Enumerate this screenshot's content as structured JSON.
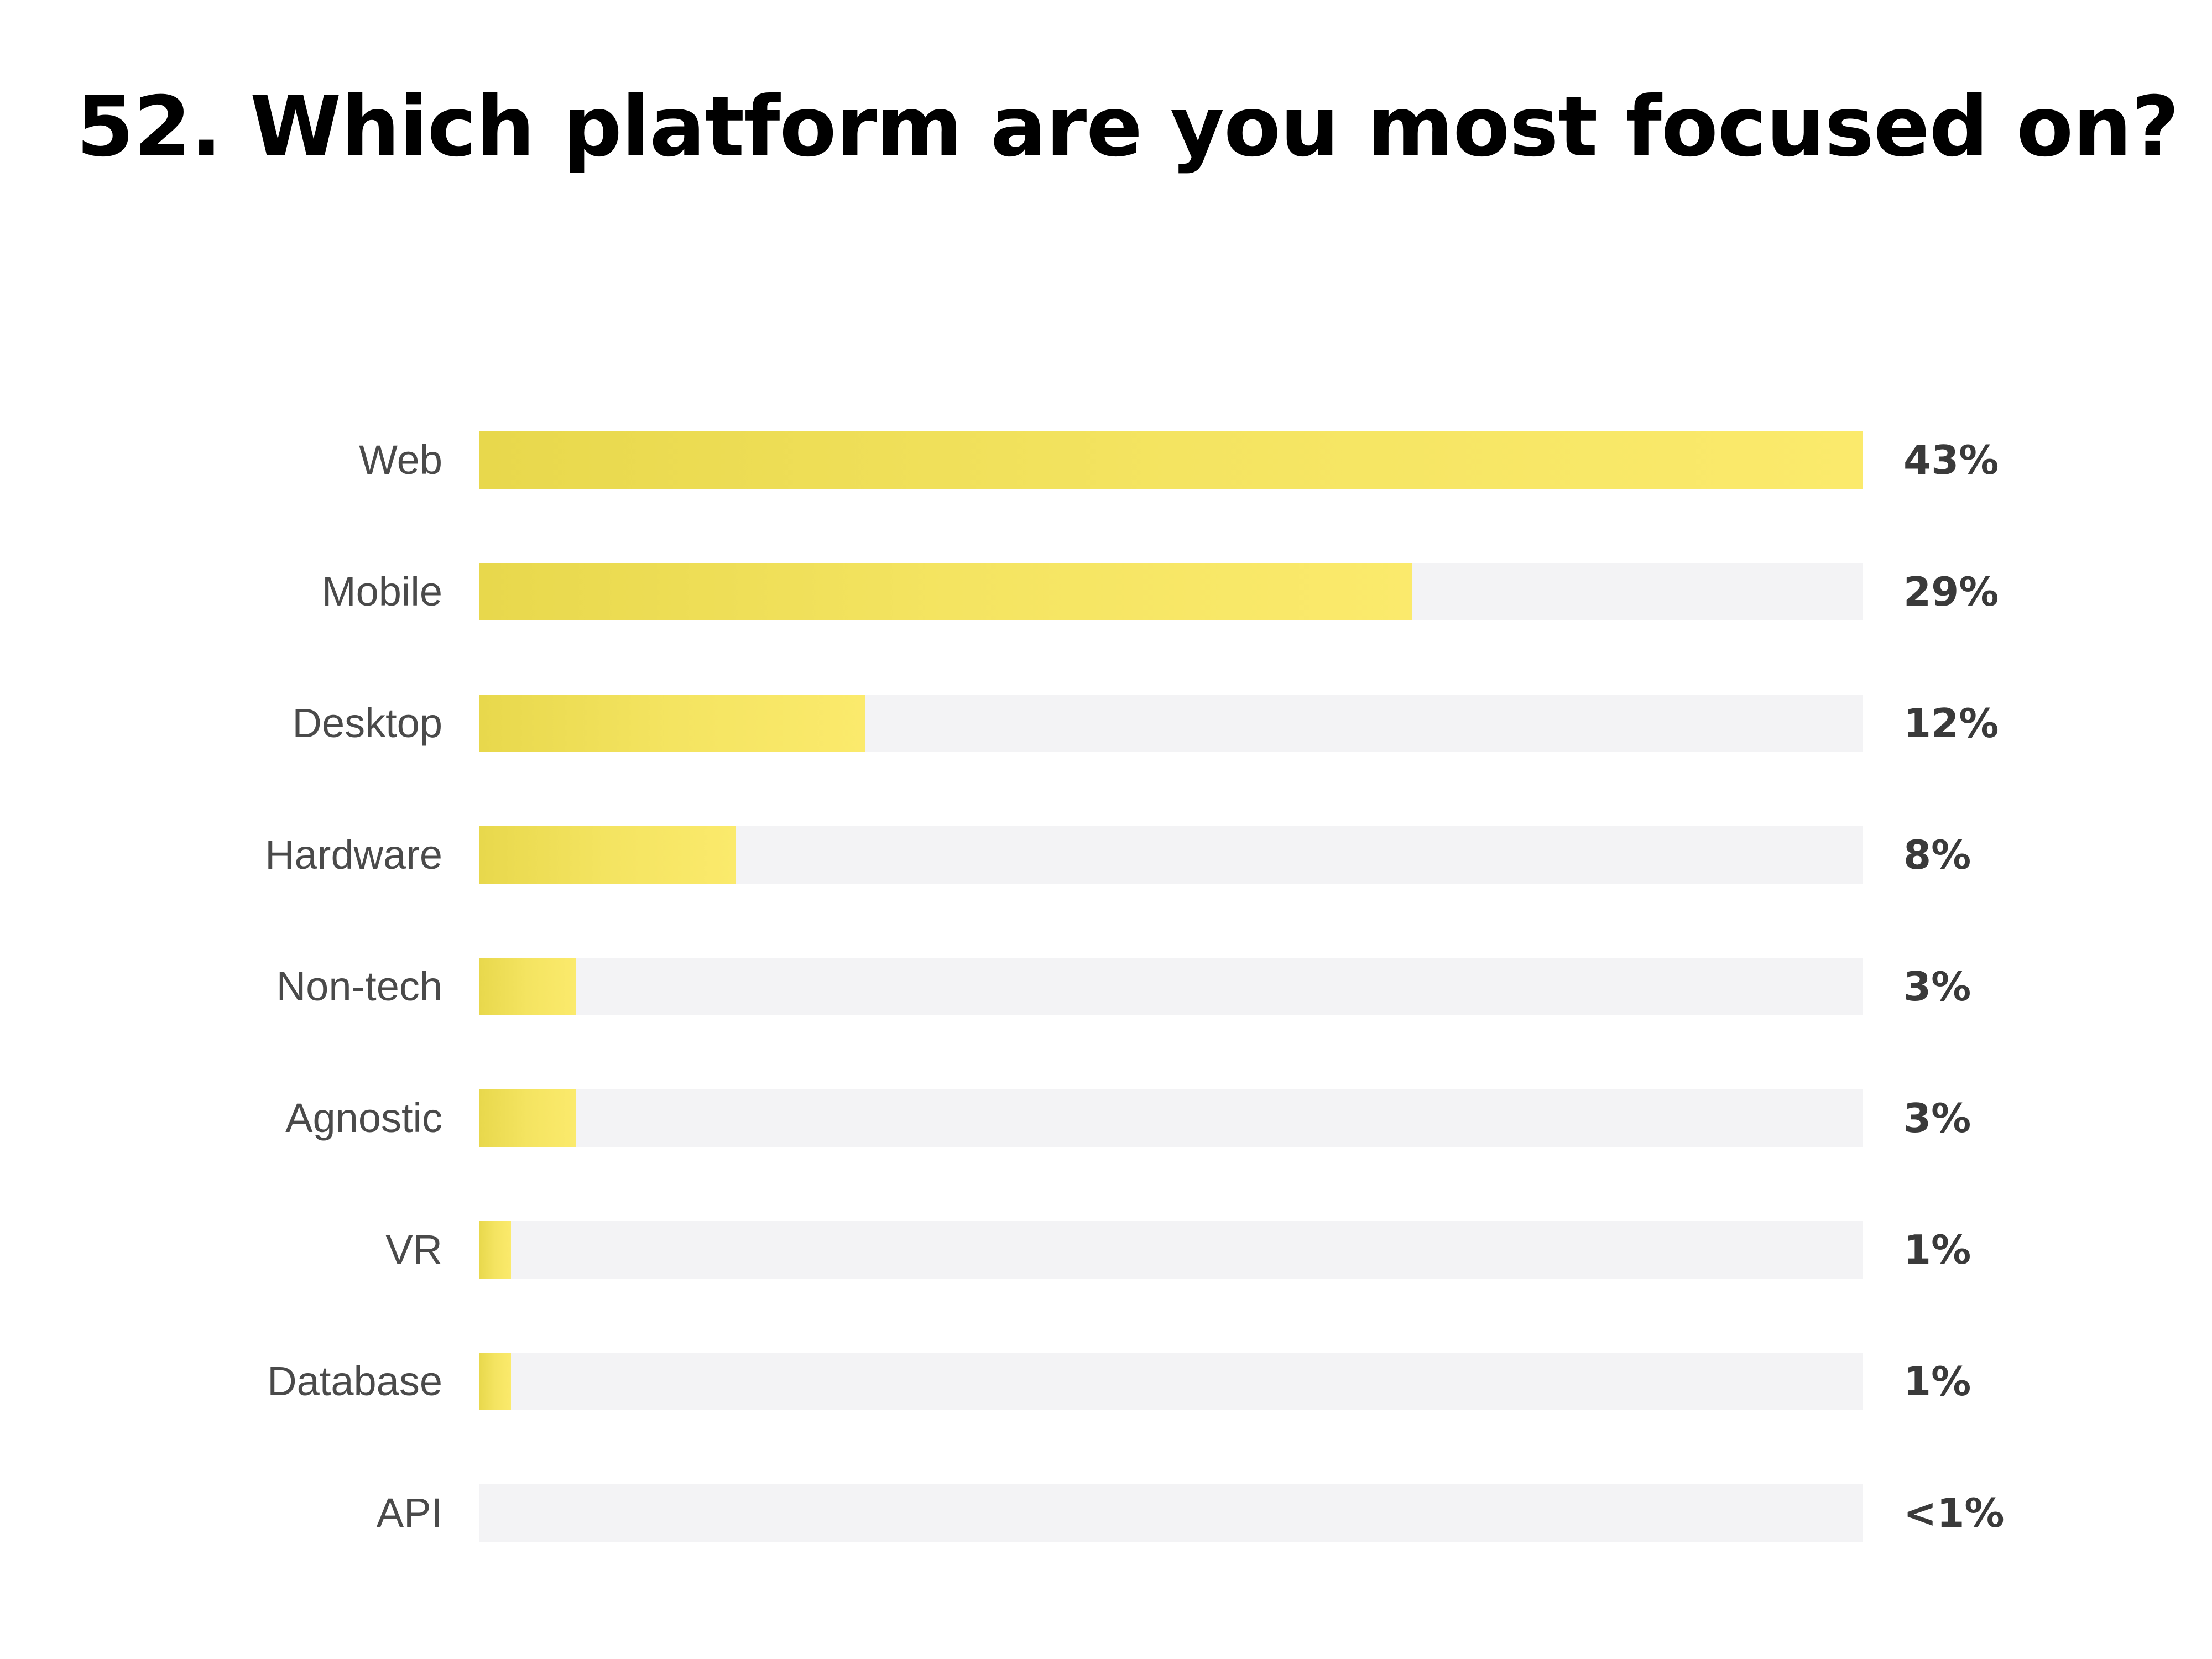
{
  "chart_data": {
    "type": "bar",
    "orientation": "horizontal",
    "title": "52. Which platform are you most focused on?",
    "categories": [
      "Web",
      "Mobile",
      "Desktop",
      "Hardware",
      "Non-tech",
      "Agnostic",
      "VR",
      "Database",
      "API"
    ],
    "values": [
      43,
      29,
      12,
      8,
      3,
      3,
      1,
      1,
      0
    ],
    "value_labels": [
      "43%",
      "29%",
      "12%",
      "8%",
      "3%",
      "3%",
      "1%",
      "1%",
      "<1%"
    ],
    "xlim": [
      0,
      43
    ],
    "xlabel": "",
    "ylabel": "",
    "grid": false,
    "legend": "none",
    "colors": {
      "bar_start": "#e8d84c",
      "bar_end": "#fbea6c",
      "track": "#f3f3f5",
      "category_text": "#4a4a4a",
      "value_text": "#3a3a3a",
      "title_text": "#000000"
    }
  }
}
